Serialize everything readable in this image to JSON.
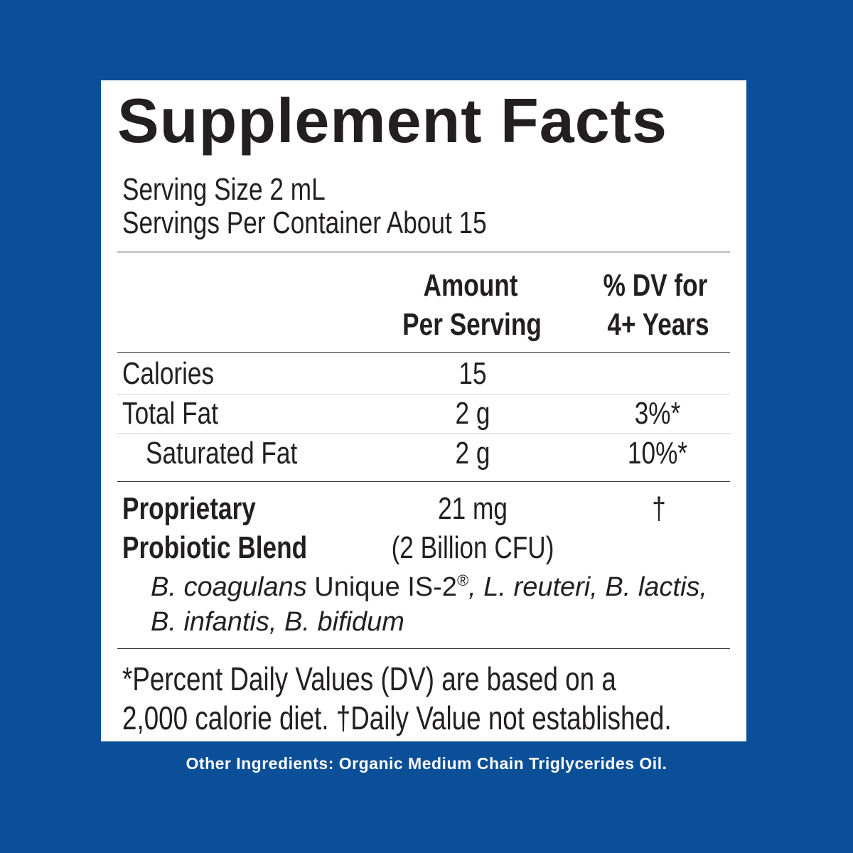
{
  "title": "Supplement Facts",
  "serving": [
    "Serving Size 2 mL",
    "Servings Per Container About 15"
  ],
  "column_headers": [
    [
      "Amount",
      "Per Serving"
    ],
    [
      "% DV for",
      "4+ Years"
    ]
  ],
  "rows": [
    {
      "name": "Calories",
      "amount": "15"
    },
    {
      "name": "Total Fat",
      "amount": "2 g",
      "dv": "3%*"
    },
    {
      "name": "Saturated Fat",
      "amount": "2 g",
      "dv": "10%*"
    }
  ],
  "blend": {
    "name": [
      "Proprietary",
      "Probiotic Blend"
    ],
    "amount": [
      "21 mg",
      "(2 Billion CFU)"
    ],
    "dv": "†",
    "ingredients": [
      "B. coagulans",
      " Unique IS-2",
      "®",
      ", L. reuteri, B. lactis, B. infantis, B. bifidum"
    ]
  },
  "footnote": [
    "*Percent Daily Values (DV) are based on a",
    "2,000 calorie diet. †Daily Value not established."
  ],
  "other_ingredients": "Other Ingredients: Organic Medium Chain Triglycerides Oil."
}
